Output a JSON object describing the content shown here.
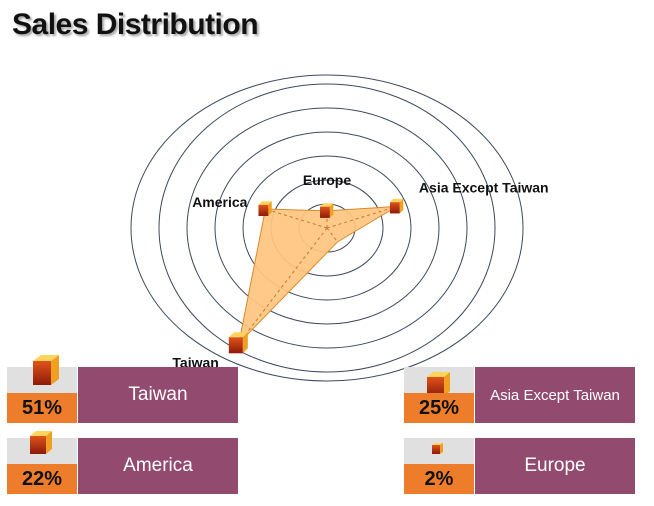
{
  "title": "Sales Distribution",
  "chart_data": {
    "type": "radar",
    "categories": [
      "Europe",
      "Asia Except Taiwan",
      "",
      "Taiwan",
      "America"
    ],
    "series": [
      {
        "values": [
          2,
          25,
          1,
          51,
          22
        ]
      }
    ],
    "rmax": 51,
    "rings": 5,
    "fill_color": "#ffc67f",
    "stroke_color": "#d98a2b",
    "grid": true
  },
  "cards": [
    {
      "pct": "51%",
      "label": "Taiwan"
    },
    {
      "pct": "22%",
      "label": "America"
    },
    {
      "pct": "25%",
      "label": "Asia Except Taiwan"
    },
    {
      "pct": "2%",
      "label": "Europe"
    }
  ],
  "colors": {
    "card_label_bg": "#934a6f",
    "card_pct_bg": "#ee7d2b",
    "card_top_bg": "#e0e0e0"
  }
}
